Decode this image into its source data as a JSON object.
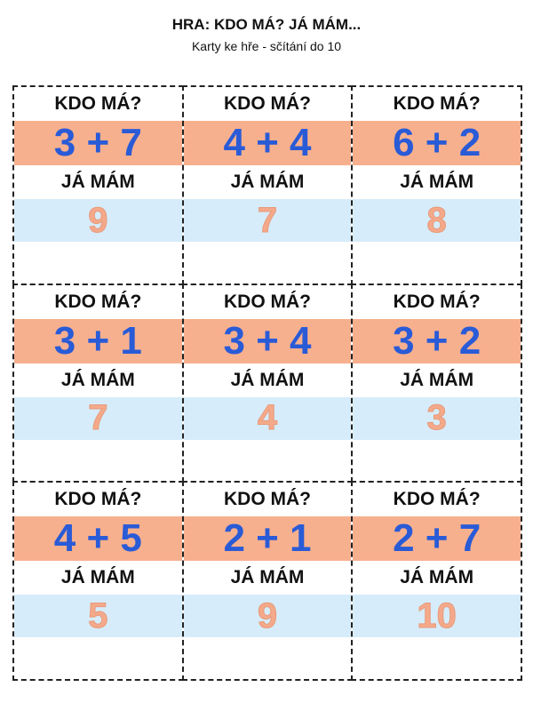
{
  "header": {
    "title": "HRA: KDO MÁ? JÁ MÁM...",
    "subtitle": "Karty ke hře - sčítání do 10"
  },
  "cards": [
    {
      "question": "KDO MÁ?",
      "expression": "3 + 7",
      "answer_label": "JÁ MÁM",
      "answer": "9"
    },
    {
      "question": "KDO MÁ?",
      "expression": "4 + 4",
      "answer_label": "JÁ MÁM",
      "answer": "7"
    },
    {
      "question": "KDO MÁ?",
      "expression": "6 + 2",
      "answer_label": "JÁ MÁM",
      "answer": "8"
    },
    {
      "question": "KDO MÁ?",
      "expression": "3 + 1",
      "answer_label": "JÁ MÁM",
      "answer": "7"
    },
    {
      "question": "KDO MÁ?",
      "expression": "3 + 4",
      "answer_label": "JÁ MÁM",
      "answer": "4"
    },
    {
      "question": "KDO MÁ?",
      "expression": "3 + 2",
      "answer_label": "JÁ MÁM",
      "answer": "3"
    },
    {
      "question": "KDO MÁ?",
      "expression": "4 + 5",
      "answer_label": "JÁ MÁM",
      "answer": "5"
    },
    {
      "question": "KDO MÁ?",
      "expression": "2 + 1",
      "answer_label": "JÁ MÁM",
      "answer": "9"
    },
    {
      "question": "KDO MÁ?",
      "expression": "2 + 7",
      "answer_label": "JÁ MÁM",
      "answer": "10"
    }
  ],
  "colors": {
    "expression_bg": "#f7b08e",
    "expression_text": "#2a5bd7",
    "answer_bg": "#d6ecfa",
    "answer_text": "#f4a98a"
  }
}
